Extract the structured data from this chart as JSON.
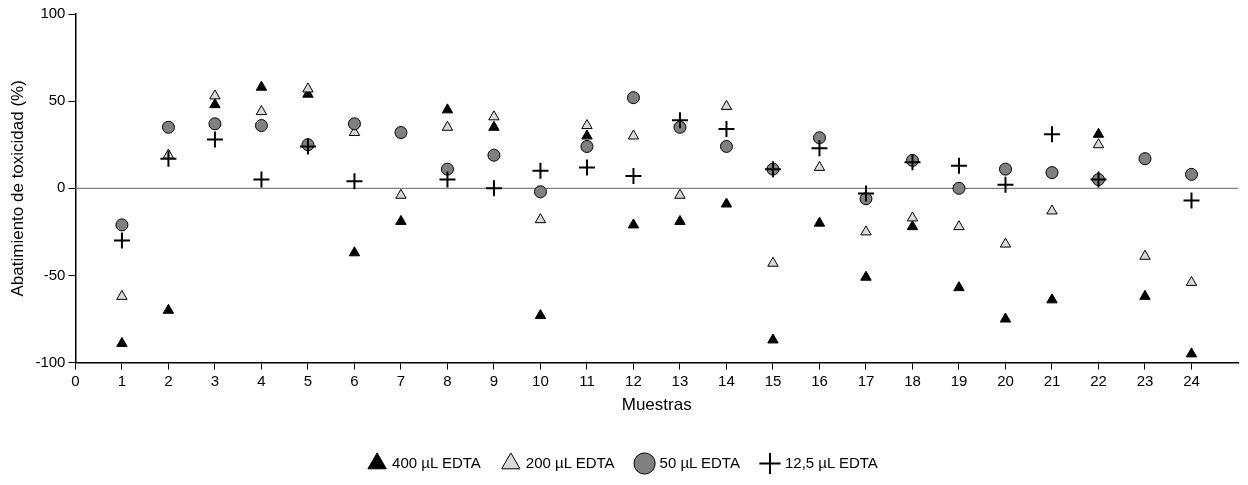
{
  "chart_data": {
    "type": "scatter",
    "xlabel": "Muestras",
    "ylabel": "Abatimiento de toxicidad (%)",
    "x": [
      1,
      2,
      3,
      4,
      5,
      6,
      7,
      8,
      9,
      10,
      11,
      12,
      13,
      14,
      15,
      16,
      17,
      18,
      19,
      20,
      21,
      22,
      23,
      24
    ],
    "xlim": [
      0,
      25
    ],
    "xticks": [
      0,
      1,
      2,
      3,
      4,
      5,
      6,
      7,
      8,
      9,
      10,
      11,
      12,
      13,
      14,
      15,
      16,
      17,
      18,
      19,
      20,
      21,
      22,
      23,
      24
    ],
    "ylim": [
      -100,
      100
    ],
    "yticks": [
      -100,
      -50,
      0,
      50,
      100
    ],
    "legend": "bottom",
    "ref_lines": [
      {
        "axis": "y",
        "value": 0,
        "color": "#808080"
      }
    ],
    "series": [
      {
        "name": "400 µL EDTA",
        "color": "#000000",
        "marker": "triangle",
        "values": [
          -89,
          -70,
          48,
          58,
          54,
          -37,
          -19,
          45,
          35,
          -73,
          30,
          -21,
          -19,
          -9,
          -87,
          -20,
          -51,
          -22,
          -57,
          -75,
          -64,
          31,
          -62,
          -95
        ]
      },
      {
        "name": "200 µL EDTA",
        "color": "#d9d9d9",
        "marker": "triangle",
        "values": [
          -62,
          19,
          53,
          44,
          57,
          32,
          -4,
          35,
          41,
          -18,
          36,
          30,
          -4,
          47,
          -43,
          12,
          -25,
          -17,
          -22,
          -32,
          -13,
          25,
          -39,
          -54
        ]
      },
      {
        "name": "50 µL EDTA",
        "color": "#808080",
        "marker": "circle",
        "values": [
          -21,
          35,
          37,
          36,
          25,
          37,
          32,
          11,
          19,
          -2,
          24,
          52,
          35,
          24,
          11,
          29,
          -6,
          16,
          0,
          11,
          9,
          5,
          17,
          8
        ]
      },
      {
        "name": "12,5 µL EDTA",
        "color": "#000000",
        "marker": "cross",
        "values": [
          -30,
          17,
          28,
          5,
          24,
          4,
          null,
          5,
          0,
          10,
          12,
          7,
          39,
          34,
          11,
          23,
          -3,
          15,
          13,
          2,
          31,
          5,
          null,
          -7
        ]
      }
    ]
  }
}
